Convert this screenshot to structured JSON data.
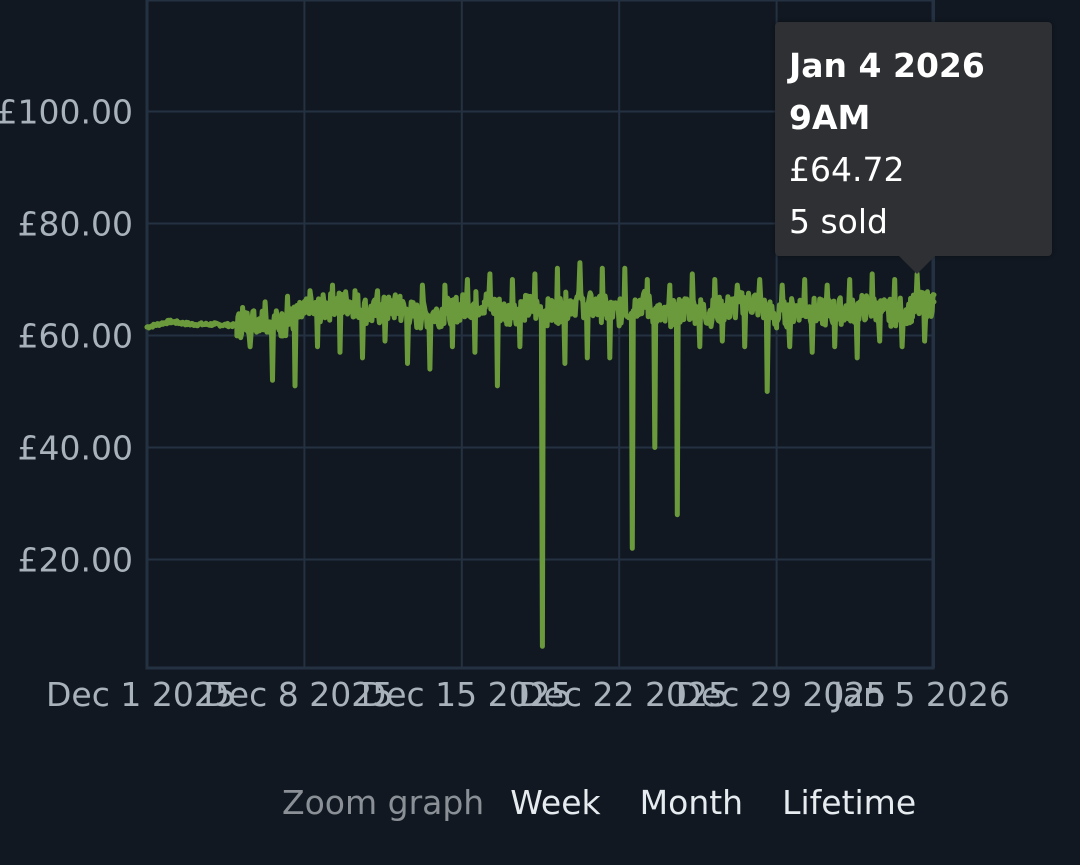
{
  "chart_data": {
    "type": "line",
    "title": "",
    "xlabel": "",
    "ylabel": "",
    "ylim": [
      0,
      115
    ],
    "xlim": [
      "2025-12-01",
      "2026-01-06"
    ],
    "y_ticks": [
      {
        "value": 100,
        "label": "£100.00"
      },
      {
        "value": 80,
        "label": "£80.00"
      },
      {
        "value": 60,
        "label": "£60.00"
      },
      {
        "value": 40,
        "label": "£40.00"
      },
      {
        "value": 20,
        "label": "£20.00"
      }
    ],
    "x_ticks": [
      {
        "date": "2025-12-01",
        "label": "Dec 1 2025"
      },
      {
        "date": "2025-12-08",
        "label": "Dec 8 2025"
      },
      {
        "date": "2025-12-15",
        "label": "Dec 15 2025"
      },
      {
        "date": "2025-12-22",
        "label": "Dec 22 2025"
      },
      {
        "date": "2025-12-29",
        "label": "Dec 29 2025"
      },
      {
        "date": "2026-01-05",
        "label": "Jan 5 2026"
      }
    ],
    "grid": true,
    "line_color": "#6b9a3d",
    "series": [
      {
        "x": [
          "2025-12-01",
          "2025-12-02",
          "2025-12-03",
          "2025-12-04",
          "2025-12-05",
          "2025-12-06",
          "2025-12-07",
          "2025-12-08",
          "2025-12-09",
          "2025-12-10",
          "2025-12-11",
          "2025-12-12",
          "2025-12-13",
          "2025-12-14",
          "2025-12-15",
          "2025-12-16",
          "2025-12-17",
          "2025-12-18",
          "2025-12-19",
          "2025-12-20",
          "2025-12-21",
          "2025-12-22",
          "2025-12-23",
          "2025-12-24",
          "2025-12-25",
          "2025-12-26",
          "2025-12-27",
          "2025-12-28",
          "2025-12-29",
          "2025-12-30",
          "2025-12-31",
          "2026-01-01",
          "2026-01-02",
          "2026-01-03",
          "2026-01-04",
          "2026-01-05"
        ],
        "y": [
          61.5,
          62.5,
          62,
          62,
          61.8,
          63,
          62,
          64,
          65,
          66,
          64,
          65,
          63.5,
          64,
          65,
          66,
          64,
          65,
          64,
          66,
          65,
          64,
          66,
          63,
          65,
          64,
          65,
          66,
          63,
          65,
          64,
          64.5,
          65,
          64,
          64.72,
          66
        ],
        "low": [
          61,
          61.5,
          61.5,
          61.5,
          58,
          52,
          51,
          58,
          57,
          56,
          59,
          55,
          54,
          58,
          57,
          51,
          58,
          4.5,
          55,
          56,
          56,
          22,
          40,
          28,
          58,
          59,
          58,
          50,
          58,
          57,
          58,
          56,
          59,
          58,
          59,
          59
        ],
        "high": [
          62,
          63,
          62.5,
          62.5,
          65,
          66,
          67,
          68,
          69,
          68,
          68,
          67,
          69,
          69,
          70,
          71,
          70,
          71,
          72,
          73,
          72,
          72,
          70,
          69,
          71,
          70,
          69,
          70,
          69,
          70,
          69,
          70,
          71,
          70,
          71,
          71
        ]
      }
    ]
  },
  "tooltip": {
    "date": "Jan 4 2026",
    "time": "9AM",
    "price": "£64.72",
    "sold": "5 sold"
  },
  "zoom": {
    "label": "Zoom graph",
    "options": [
      "Week",
      "Month",
      "Lifetime"
    ]
  }
}
